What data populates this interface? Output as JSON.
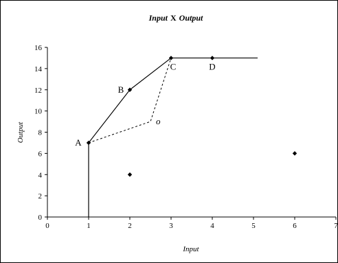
{
  "chart_data": {
    "type": "scatter",
    "title_parts": {
      "a": "Input",
      "b": "X",
      "c": "Output"
    },
    "xlabel": "Input",
    "ylabel": "Output",
    "xlim": [
      0,
      7
    ],
    "ylim": [
      0,
      16
    ],
    "xticks": [
      0,
      1,
      2,
      3,
      4,
      5,
      6,
      7
    ],
    "yticks": [
      0,
      2,
      4,
      6,
      8,
      10,
      12,
      14,
      16
    ],
    "grid": false,
    "points": [
      {
        "label": "A",
        "x": 1,
        "y": 7
      },
      {
        "label": "B",
        "x": 2,
        "y": 12
      },
      {
        "label": "C",
        "x": 3,
        "y": 15
      },
      {
        "label": "D",
        "x": 4,
        "y": 15
      },
      {
        "label": "",
        "x": 2,
        "y": 4
      },
      {
        "label": "",
        "x": 6,
        "y": 6
      },
      {
        "label": "o",
        "x": 2.5,
        "y": 9,
        "marker": false
      }
    ],
    "frontier": [
      [
        1,
        0
      ],
      [
        1,
        7
      ],
      [
        2,
        12
      ],
      [
        3,
        15
      ],
      [
        5.1,
        15
      ]
    ],
    "dashed_path": [
      [
        1,
        7
      ],
      [
        2.5,
        9
      ],
      [
        3,
        15
      ]
    ]
  }
}
